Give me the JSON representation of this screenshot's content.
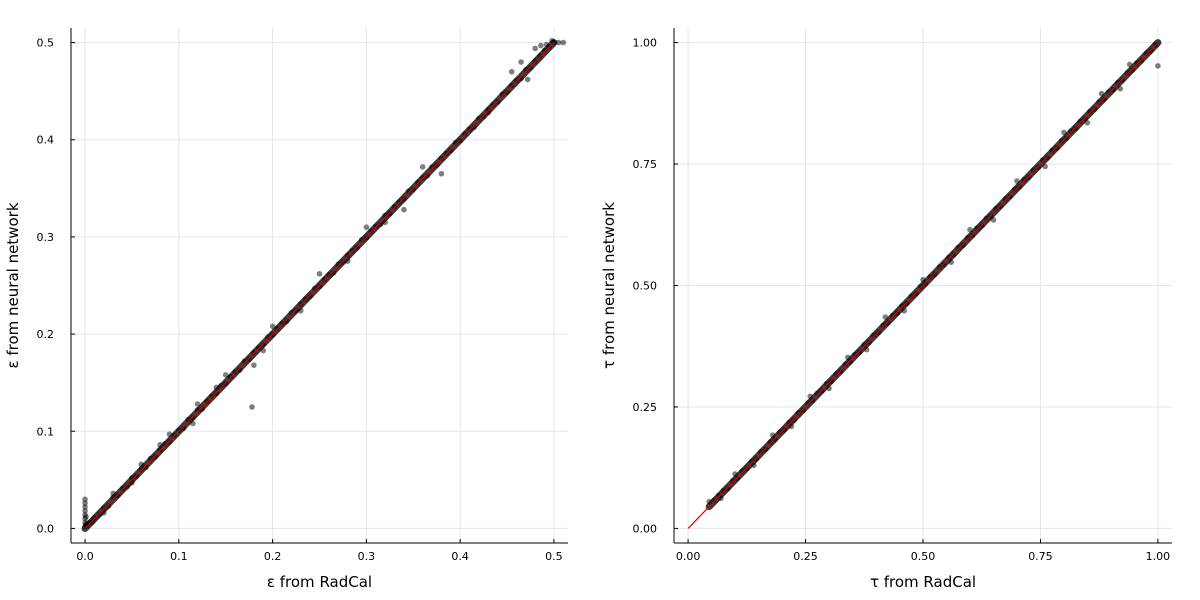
{
  "chart_data": [
    {
      "type": "scatter",
      "xlabel": "ε from RadCal",
      "ylabel": "ε from neural network",
      "xlim": [
        -0.015,
        0.515
      ],
      "ylim": [
        -0.015,
        0.515
      ],
      "xticks": [
        0.0,
        0.1,
        0.2,
        0.3,
        0.4,
        0.5
      ],
      "yticks": [
        0.0,
        0.1,
        0.2,
        0.3,
        0.4,
        0.5
      ],
      "xtick_labels": [
        "0.0",
        "0.1",
        "0.2",
        "0.3",
        "0.4",
        "0.5"
      ],
      "ytick_labels": [
        "0.0",
        "0.1",
        "0.2",
        "0.3",
        "0.4",
        "0.5"
      ],
      "grid": true,
      "legend": "none",
      "reference_line": {
        "x": [
          0.0,
          0.5
        ],
        "y": [
          0.0,
          0.5
        ],
        "color": "#e00000"
      },
      "point_color": "#000000",
      "point_opacity": 0.5,
      "points": [
        [
          0.0,
          0.002
        ],
        [
          0.0,
          0.006
        ],
        [
          0.0,
          0.01
        ],
        [
          0.0,
          0.014
        ],
        [
          0.0,
          0.018
        ],
        [
          0.0,
          0.022
        ],
        [
          0.0,
          0.026
        ],
        [
          0.0,
          0.03
        ],
        [
          0.001,
          0.004
        ],
        [
          0.001,
          0.012
        ],
        [
          0.002,
          0.003
        ],
        [
          0.003,
          0.005
        ],
        [
          0.005,
          0.006
        ],
        [
          0.008,
          0.007
        ],
        [
          0.01,
          0.011
        ],
        [
          0.015,
          0.014
        ],
        [
          0.02,
          0.021
        ],
        [
          0.025,
          0.023
        ],
        [
          0.03,
          0.032
        ],
        [
          0.035,
          0.034
        ],
        [
          0.04,
          0.041
        ],
        [
          0.045,
          0.043
        ],
        [
          0.05,
          0.052
        ],
        [
          0.055,
          0.054
        ],
        [
          0.06,
          0.061
        ],
        [
          0.065,
          0.063
        ],
        [
          0.07,
          0.072
        ],
        [
          0.075,
          0.074
        ],
        [
          0.08,
          0.081
        ],
        [
          0.085,
          0.087
        ],
        [
          0.09,
          0.089
        ],
        [
          0.095,
          0.096
        ],
        [
          0.1,
          0.101
        ],
        [
          0.105,
          0.103
        ],
        [
          0.11,
          0.112
        ],
        [
          0.115,
          0.114
        ],
        [
          0.12,
          0.122
        ],
        [
          0.125,
          0.123
        ],
        [
          0.13,
          0.131
        ],
        [
          0.135,
          0.136
        ],
        [
          0.14,
          0.139
        ],
        [
          0.145,
          0.147
        ],
        [
          0.15,
          0.149
        ],
        [
          0.155,
          0.156
        ],
        [
          0.16,
          0.161
        ],
        [
          0.165,
          0.163
        ],
        [
          0.17,
          0.172
        ],
        [
          0.175,
          0.174
        ],
        [
          0.18,
          0.181
        ],
        [
          0.185,
          0.186
        ],
        [
          0.19,
          0.189
        ],
        [
          0.195,
          0.197
        ],
        [
          0.2,
          0.199
        ],
        [
          0.205,
          0.206
        ],
        [
          0.21,
          0.211
        ],
        [
          0.215,
          0.213
        ],
        [
          0.22,
          0.222
        ],
        [
          0.225,
          0.224
        ],
        [
          0.23,
          0.231
        ],
        [
          0.235,
          0.236
        ],
        [
          0.24,
          0.239
        ],
        [
          0.245,
          0.247
        ],
        [
          0.25,
          0.249
        ],
        [
          0.255,
          0.256
        ],
        [
          0.26,
          0.261
        ],
        [
          0.265,
          0.263
        ],
        [
          0.27,
          0.272
        ],
        [
          0.275,
          0.274
        ],
        [
          0.28,
          0.281
        ],
        [
          0.285,
          0.286
        ],
        [
          0.29,
          0.289
        ],
        [
          0.295,
          0.297
        ],
        [
          0.3,
          0.299
        ],
        [
          0.305,
          0.306
        ],
        [
          0.31,
          0.311
        ],
        [
          0.315,
          0.313
        ],
        [
          0.32,
          0.322
        ],
        [
          0.325,
          0.324
        ],
        [
          0.33,
          0.331
        ],
        [
          0.335,
          0.336
        ],
        [
          0.34,
          0.339
        ],
        [
          0.345,
          0.347
        ],
        [
          0.35,
          0.349
        ],
        [
          0.355,
          0.356
        ],
        [
          0.36,
          0.361
        ],
        [
          0.365,
          0.363
        ],
        [
          0.37,
          0.372
        ],
        [
          0.375,
          0.374
        ],
        [
          0.38,
          0.381
        ],
        [
          0.385,
          0.386
        ],
        [
          0.39,
          0.389
        ],
        [
          0.395,
          0.397
        ],
        [
          0.4,
          0.399
        ],
        [
          0.405,
          0.406
        ],
        [
          0.41,
          0.411
        ],
        [
          0.415,
          0.413
        ],
        [
          0.42,
          0.422
        ],
        [
          0.425,
          0.424
        ],
        [
          0.43,
          0.431
        ],
        [
          0.435,
          0.436
        ],
        [
          0.44,
          0.439
        ],
        [
          0.445,
          0.447
        ],
        [
          0.45,
          0.449
        ],
        [
          0.455,
          0.456
        ],
        [
          0.46,
          0.461
        ],
        [
          0.465,
          0.463
        ],
        [
          0.47,
          0.472
        ],
        [
          0.475,
          0.474
        ],
        [
          0.48,
          0.481
        ],
        [
          0.485,
          0.486
        ],
        [
          0.49,
          0.492
        ],
        [
          0.495,
          0.496
        ],
        [
          0.5,
          0.5
        ],
        [
          0.505,
          0.5
        ],
        [
          0.51,
          0.5
        ],
        [
          0.498,
          0.502
        ],
        [
          0.492,
          0.498
        ],
        [
          0.486,
          0.497
        ],
        [
          0.48,
          0.494
        ],
        [
          0.472,
          0.462
        ],
        [
          0.465,
          0.48
        ],
        [
          0.455,
          0.47
        ],
        [
          0.43,
          0.428
        ],
        [
          0.38,
          0.365
        ],
        [
          0.36,
          0.372
        ],
        [
          0.34,
          0.328
        ],
        [
          0.32,
          0.315
        ],
        [
          0.3,
          0.31
        ],
        [
          0.28,
          0.275
        ],
        [
          0.25,
          0.262
        ],
        [
          0.23,
          0.224
        ],
        [
          0.2,
          0.208
        ],
        [
          0.19,
          0.183
        ],
        [
          0.18,
          0.168
        ],
        [
          0.178,
          0.125
        ],
        [
          0.15,
          0.158
        ],
        [
          0.14,
          0.145
        ],
        [
          0.12,
          0.128
        ],
        [
          0.115,
          0.108
        ],
        [
          0.09,
          0.097
        ],
        [
          0.08,
          0.086
        ],
        [
          0.06,
          0.066
        ],
        [
          0.05,
          0.047
        ],
        [
          0.03,
          0.036
        ],
        [
          0.02,
          0.016
        ]
      ]
    },
    {
      "type": "scatter",
      "xlabel": "τ from RadCal",
      "ylabel": "τ from neural network",
      "xlim": [
        -0.03,
        1.03
      ],
      "ylim": [
        -0.03,
        1.03
      ],
      "xticks": [
        0.0,
        0.25,
        0.5,
        0.75,
        1.0
      ],
      "yticks": [
        0.0,
        0.25,
        0.5,
        0.75,
        1.0
      ],
      "xtick_labels": [
        "0.00",
        "0.25",
        "0.50",
        "0.75",
        "1.00"
      ],
      "ytick_labels": [
        "0.00",
        "0.25",
        "0.50",
        "0.75",
        "1.00"
      ],
      "grid": true,
      "legend": "none",
      "reference_line": {
        "x": [
          0.0,
          1.0
        ],
        "y": [
          0.0,
          1.0
        ],
        "color": "#e00000"
      },
      "point_color": "#000000",
      "point_opacity": 0.5,
      "points": [
        [
          0.045,
          0.055
        ],
        [
          0.055,
          0.058
        ],
        [
          0.065,
          0.068
        ],
        [
          0.075,
          0.078
        ],
        [
          0.085,
          0.082
        ],
        [
          0.095,
          0.098
        ],
        [
          0.105,
          0.103
        ],
        [
          0.115,
          0.118
        ],
        [
          0.125,
          0.123
        ],
        [
          0.135,
          0.138
        ],
        [
          0.145,
          0.143
        ],
        [
          0.155,
          0.158
        ],
        [
          0.165,
          0.163
        ],
        [
          0.175,
          0.178
        ],
        [
          0.185,
          0.183
        ],
        [
          0.195,
          0.198
        ],
        [
          0.205,
          0.203
        ],
        [
          0.215,
          0.218
        ],
        [
          0.225,
          0.223
        ],
        [
          0.235,
          0.238
        ],
        [
          0.245,
          0.243
        ],
        [
          0.255,
          0.258
        ],
        [
          0.265,
          0.263
        ],
        [
          0.275,
          0.278
        ],
        [
          0.285,
          0.283
        ],
        [
          0.295,
          0.298
        ],
        [
          0.305,
          0.303
        ],
        [
          0.315,
          0.318
        ],
        [
          0.325,
          0.323
        ],
        [
          0.335,
          0.338
        ],
        [
          0.345,
          0.343
        ],
        [
          0.355,
          0.358
        ],
        [
          0.365,
          0.363
        ],
        [
          0.375,
          0.378
        ],
        [
          0.385,
          0.383
        ],
        [
          0.395,
          0.398
        ],
        [
          0.405,
          0.403
        ],
        [
          0.415,
          0.418
        ],
        [
          0.425,
          0.423
        ],
        [
          0.435,
          0.438
        ],
        [
          0.445,
          0.443
        ],
        [
          0.455,
          0.458
        ],
        [
          0.465,
          0.463
        ],
        [
          0.475,
          0.478
        ],
        [
          0.485,
          0.483
        ],
        [
          0.495,
          0.498
        ],
        [
          0.505,
          0.503
        ],
        [
          0.515,
          0.518
        ],
        [
          0.525,
          0.523
        ],
        [
          0.535,
          0.538
        ],
        [
          0.545,
          0.543
        ],
        [
          0.555,
          0.558
        ],
        [
          0.565,
          0.563
        ],
        [
          0.575,
          0.578
        ],
        [
          0.585,
          0.583
        ],
        [
          0.595,
          0.598
        ],
        [
          0.605,
          0.603
        ],
        [
          0.615,
          0.618
        ],
        [
          0.625,
          0.623
        ],
        [
          0.635,
          0.638
        ],
        [
          0.645,
          0.643
        ],
        [
          0.655,
          0.658
        ],
        [
          0.665,
          0.663
        ],
        [
          0.675,
          0.678
        ],
        [
          0.685,
          0.683
        ],
        [
          0.695,
          0.698
        ],
        [
          0.705,
          0.703
        ],
        [
          0.715,
          0.718
        ],
        [
          0.725,
          0.723
        ],
        [
          0.735,
          0.738
        ],
        [
          0.745,
          0.743
        ],
        [
          0.755,
          0.758
        ],
        [
          0.765,
          0.763
        ],
        [
          0.775,
          0.778
        ],
        [
          0.785,
          0.783
        ],
        [
          0.795,
          0.798
        ],
        [
          0.805,
          0.803
        ],
        [
          0.815,
          0.818
        ],
        [
          0.825,
          0.823
        ],
        [
          0.835,
          0.838
        ],
        [
          0.845,
          0.843
        ],
        [
          0.855,
          0.858
        ],
        [
          0.865,
          0.863
        ],
        [
          0.875,
          0.878
        ],
        [
          0.885,
          0.883
        ],
        [
          0.895,
          0.898
        ],
        [
          0.905,
          0.903
        ],
        [
          0.915,
          0.918
        ],
        [
          0.925,
          0.923
        ],
        [
          0.935,
          0.938
        ],
        [
          0.945,
          0.943
        ],
        [
          0.955,
          0.958
        ],
        [
          0.965,
          0.963
        ],
        [
          0.975,
          0.978
        ],
        [
          0.985,
          0.983
        ],
        [
          0.995,
          0.995
        ],
        [
          1.0,
          0.952
        ],
        [
          0.94,
          0.955
        ],
        [
          0.92,
          0.905
        ],
        [
          0.88,
          0.895
        ],
        [
          0.85,
          0.835
        ],
        [
          0.8,
          0.815
        ],
        [
          0.76,
          0.745
        ],
        [
          0.7,
          0.715
        ],
        [
          0.65,
          0.635
        ],
        [
          0.6,
          0.615
        ],
        [
          0.56,
          0.548
        ],
        [
          0.5,
          0.512
        ],
        [
          0.46,
          0.448
        ],
        [
          0.42,
          0.435
        ],
        [
          0.38,
          0.368
        ],
        [
          0.34,
          0.352
        ],
        [
          0.3,
          0.288
        ],
        [
          0.26,
          0.272
        ],
        [
          0.22,
          0.21
        ],
        [
          0.18,
          0.192
        ],
        [
          0.14,
          0.13
        ],
        [
          0.1,
          0.112
        ],
        [
          0.07,
          0.062
        ]
      ]
    }
  ]
}
